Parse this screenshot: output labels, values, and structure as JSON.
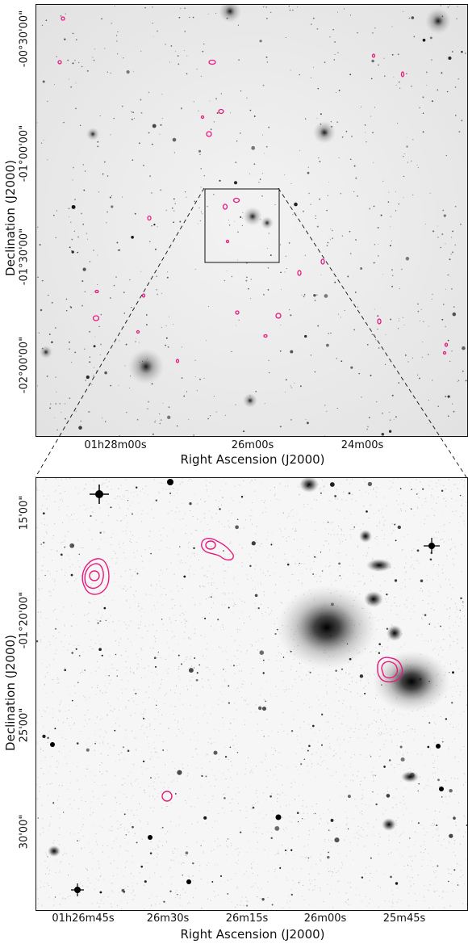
{
  "top_panel": {
    "x_ticks": [
      "01h28m00s",
      "26m00s",
      "24m00s"
    ],
    "y_ticks": [
      "-00°30'00\"",
      "-01°00'00\"",
      "-01°30'00\"",
      "-02°00'00\""
    ],
    "x_label": "Right Ascension (J2000)",
    "y_label": "Declination (J2000)"
  },
  "bottom_panel": {
    "x_ticks": [
      "01h26m45s",
      "26m30s",
      "26m15s",
      "26m00s",
      "25m45s"
    ],
    "y_ticks": [
      "15'00\"",
      "-01°20'00\"",
      "25'00\"",
      "30'00\""
    ],
    "x_label": "Right Ascension (J2000)",
    "y_label": "Declination (J2000)"
  },
  "colors": {
    "contour": "#e8197e",
    "frame": "#111111",
    "sky_top": "#efefef",
    "sky_bottom": "#fbfbfb"
  }
}
